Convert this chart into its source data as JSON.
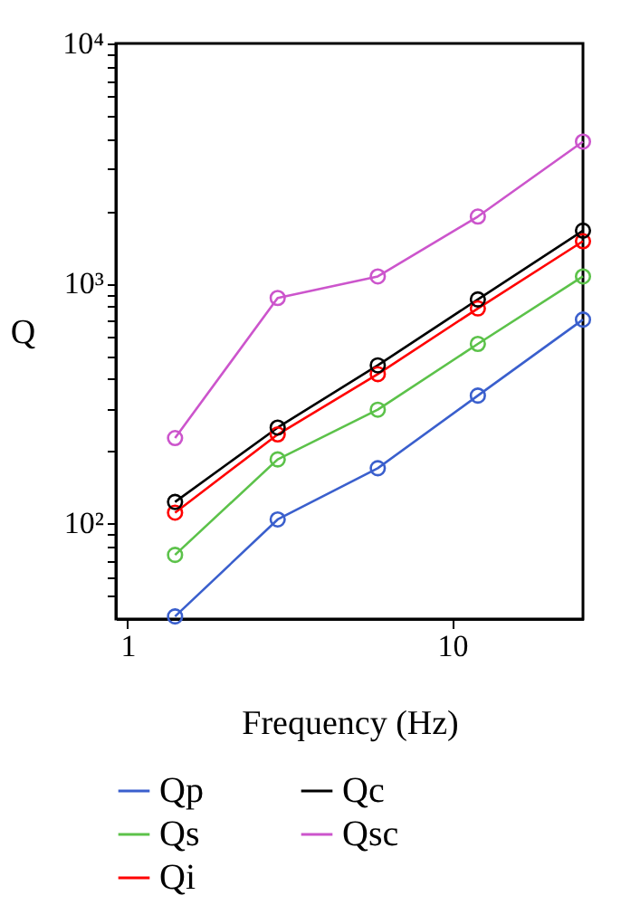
{
  "chart_data": {
    "type": "line",
    "xlabel": "Frequency (Hz)",
    "ylabel": "Q",
    "log": "xy",
    "grid": false,
    "legend": "bottom",
    "marker": "circle",
    "line_style": "solid",
    "x": [
      1.4,
      2.9,
      5.9,
      12,
      25.3
    ],
    "xlim": [
      0.92,
      25.3
    ],
    "xticks": [
      1,
      10
    ],
    "ylim": [
      40,
      10000
    ],
    "yticks": [
      {
        "value": 100,
        "label": "10²"
      },
      {
        "value": 1000,
        "label": "10³"
      },
      {
        "value": 10000,
        "label": "10⁴"
      },
      {
        "value": 50,
        "label": null
      },
      {
        "value": 60,
        "label": null
      },
      {
        "value": 70,
        "label": null
      },
      {
        "value": 80,
        "label": null
      },
      {
        "value": 90,
        "label": null
      },
      {
        "value": 200,
        "label": null
      },
      {
        "value": 300,
        "label": null
      },
      {
        "value": 400,
        "label": null
      },
      {
        "value": 500,
        "label": null
      },
      {
        "value": 600,
        "label": null
      },
      {
        "value": 700,
        "label": null
      },
      {
        "value": 800,
        "label": null
      },
      {
        "value": 900,
        "label": null
      },
      {
        "value": 2000,
        "label": null
      },
      {
        "value": 3000,
        "label": null
      },
      {
        "value": 4000,
        "label": null
      },
      {
        "value": 5000,
        "label": null
      },
      {
        "value": 6000,
        "label": null
      },
      {
        "value": 7000,
        "label": null
      },
      {
        "value": 8000,
        "label": null
      },
      {
        "value": 9000,
        "label": null
      }
    ],
    "series": [
      {
        "name": "Qp",
        "color": "#3a5fcd",
        "values": [
          41,
          104,
          170,
          341,
          707
        ]
      },
      {
        "name": "Qs",
        "color": "#5cc24a",
        "values": [
          74,
          185,
          298,
          560,
          1070
        ]
      },
      {
        "name": "Qi",
        "color": "#ff0000",
        "values": [
          111,
          235,
          419,
          787,
          1500
        ]
      },
      {
        "name": "Qc",
        "color": "#000000",
        "values": [
          123,
          251,
          456,
          858,
          1660
        ]
      },
      {
        "name": "Qsc",
        "color": "#cc55cc",
        "values": [
          227,
          870,
          1070,
          1900,
          3900
        ]
      }
    ]
  }
}
